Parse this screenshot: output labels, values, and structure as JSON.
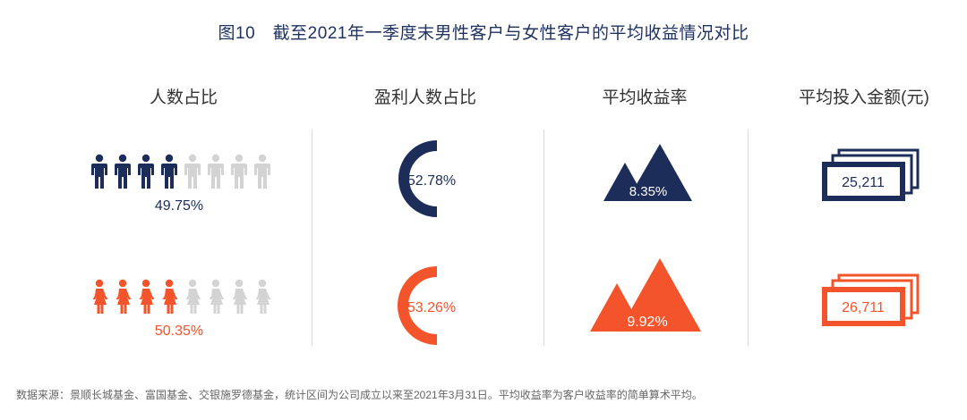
{
  "title": "图10　截至2021年一季度末男性客户与女性客户的平均收益情况对比",
  "headers": {
    "people_share": "人数占比",
    "profit_share": "盈利人数占比",
    "avg_return": "平均收益率",
    "avg_investment": "平均投入金额(元)"
  },
  "colors": {
    "male": "#1c2d5a",
    "female": "#f4542b",
    "grey": "#d3d3d3"
  },
  "rows": {
    "male": {
      "people_share": "49.75%",
      "profit_share": "52.78%",
      "avg_return": "8.35%",
      "avg_investment": "25,211"
    },
    "female": {
      "people_share": "50.35%",
      "profit_share": "53.26%",
      "avg_return": "9.92%",
      "avg_investment": "26,711"
    }
  },
  "footer": "数据来源：景顺长城基金、富国基金、交银施罗德基金，统计区间为公司成立以来至2021年3月31日。平均收益率为客户收益率的简单算术平均。",
  "chart_data": {
    "type": "table",
    "title": "图10　截至2021年一季度末男性客户与女性客户的平均收益情况对比",
    "columns": [
      "人数占比",
      "盈利人数占比",
      "平均收益率",
      "平均投入金额(元)"
    ],
    "series": [
      {
        "values": [
          49.75,
          52.78,
          8.35,
          25211
        ]
      },
      {
        "values": [
          50.35,
          53.26,
          9.92,
          26711
        ]
      }
    ],
    "icons_filled": [
      4,
      4
    ],
    "icons_total": [
      8,
      8
    ]
  }
}
